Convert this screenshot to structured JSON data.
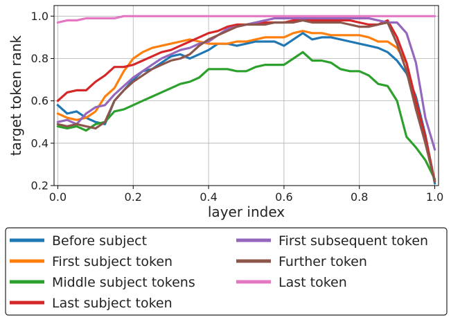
{
  "chart_data": {
    "type": "line",
    "title": "",
    "xlabel": "layer index",
    "ylabel": "target token rank",
    "xlim": [
      -0.01,
      1.01
    ],
    "ylim": [
      0.2,
      1.05
    ],
    "xticks": [
      0.0,
      0.2,
      0.4,
      0.6,
      0.8,
      1.0
    ],
    "xtick_labels": [
      "0.0",
      "0.2",
      "0.4",
      "0.6",
      "0.8",
      "1.0"
    ],
    "yticks": [
      0.2,
      0.4,
      0.6,
      0.8,
      1.0
    ],
    "ytick_labels": [
      "0.2",
      "0.4",
      "0.6",
      "0.8",
      "1.0"
    ],
    "grid": true,
    "legend_position": "below the plot, two columns",
    "x": [
      0.0,
      0.025,
      0.05,
      0.075,
      0.1,
      0.125,
      0.15,
      0.175,
      0.2,
      0.225,
      0.25,
      0.275,
      0.3,
      0.325,
      0.35,
      0.375,
      0.4,
      0.425,
      0.45,
      0.475,
      0.5,
      0.525,
      0.55,
      0.575,
      0.6,
      0.625,
      0.65,
      0.675,
      0.7,
      0.725,
      0.75,
      0.775,
      0.8,
      0.825,
      0.85,
      0.875,
      0.9,
      0.925,
      0.95,
      0.975,
      1.0
    ],
    "series": [
      {
        "name": "Before subject",
        "color": "#1f77b4",
        "values": [
          0.58,
          0.54,
          0.55,
          0.52,
          0.5,
          0.49,
          0.6,
          0.65,
          0.7,
          0.74,
          0.75,
          0.78,
          0.81,
          0.82,
          0.8,
          0.82,
          0.84,
          0.87,
          0.87,
          0.86,
          0.87,
          0.88,
          0.88,
          0.88,
          0.86,
          0.89,
          0.92,
          0.89,
          0.9,
          0.9,
          0.89,
          0.88,
          0.87,
          0.86,
          0.85,
          0.83,
          0.79,
          0.73,
          0.62,
          0.44,
          0.21
        ]
      },
      {
        "name": "First subject token",
        "color": "#ff7f0e",
        "values": [
          0.54,
          0.52,
          0.51,
          0.52,
          0.55,
          0.62,
          0.66,
          0.74,
          0.8,
          0.83,
          0.85,
          0.86,
          0.87,
          0.88,
          0.89,
          0.88,
          0.87,
          0.87,
          0.87,
          0.88,
          0.88,
          0.89,
          0.9,
          0.9,
          0.9,
          0.92,
          0.93,
          0.92,
          0.92,
          0.91,
          0.91,
          0.91,
          0.91,
          0.9,
          0.88,
          0.88,
          0.85,
          0.78,
          0.6,
          0.4,
          0.22
        ]
      },
      {
        "name": "Middle subject tokens",
        "color": "#2ca02c",
        "values": [
          0.48,
          0.47,
          0.48,
          0.46,
          0.49,
          0.5,
          0.55,
          0.56,
          0.58,
          0.6,
          0.62,
          0.64,
          0.66,
          0.68,
          0.69,
          0.71,
          0.75,
          0.75,
          0.75,
          0.74,
          0.74,
          0.76,
          0.77,
          0.77,
          0.77,
          0.8,
          0.83,
          0.79,
          0.79,
          0.78,
          0.75,
          0.74,
          0.74,
          0.72,
          0.68,
          0.67,
          0.6,
          0.43,
          0.38,
          0.32,
          0.23
        ]
      },
      {
        "name": "Last subject token",
        "color": "#d62728",
        "values": [
          0.6,
          0.64,
          0.65,
          0.65,
          0.69,
          0.72,
          0.76,
          0.76,
          0.77,
          0.79,
          0.81,
          0.83,
          0.84,
          0.86,
          0.88,
          0.9,
          0.92,
          0.93,
          0.95,
          0.96,
          0.96,
          0.97,
          0.97,
          0.97,
          0.97,
          0.98,
          0.98,
          0.98,
          0.98,
          0.98,
          0.98,
          0.98,
          0.97,
          0.96,
          0.96,
          0.98,
          0.9,
          0.78,
          0.6,
          0.43,
          0.22
        ]
      },
      {
        "name": "First subsequent token",
        "color": "#9467bd",
        "values": [
          0.5,
          0.51,
          0.49,
          0.54,
          0.57,
          0.58,
          0.63,
          0.67,
          0.71,
          0.74,
          0.77,
          0.8,
          0.82,
          0.84,
          0.85,
          0.87,
          0.88,
          0.91,
          0.94,
          0.95,
          0.96,
          0.97,
          0.98,
          0.99,
          0.99,
          0.99,
          0.99,
          0.99,
          0.99,
          0.99,
          0.99,
          0.99,
          0.99,
          0.99,
          0.98,
          0.97,
          0.97,
          0.92,
          0.78,
          0.52,
          0.37
        ]
      },
      {
        "name": "Further token",
        "color": "#8c564b",
        "values": [
          0.49,
          0.48,
          0.49,
          0.48,
          0.47,
          0.5,
          0.6,
          0.65,
          0.69,
          0.72,
          0.75,
          0.77,
          0.79,
          0.8,
          0.82,
          0.86,
          0.89,
          0.91,
          0.93,
          0.95,
          0.96,
          0.96,
          0.96,
          0.97,
          0.97,
          0.97,
          0.98,
          0.97,
          0.97,
          0.97,
          0.97,
          0.96,
          0.95,
          0.95,
          0.96,
          0.97,
          0.87,
          0.74,
          0.56,
          0.4,
          0.22
        ]
      },
      {
        "name": "Last token",
        "color": "#e377c2",
        "values": [
          0.97,
          0.98,
          0.98,
          0.99,
          0.99,
          0.99,
          0.99,
          1.0,
          1.0,
          1.0,
          1.0,
          1.0,
          1.0,
          1.0,
          1.0,
          1.0,
          1.0,
          1.0,
          1.0,
          1.0,
          1.0,
          1.0,
          1.0,
          1.0,
          1.0,
          1.0,
          1.0,
          1.0,
          1.0,
          1.0,
          1.0,
          1.0,
          1.0,
          1.0,
          1.0,
          1.0,
          1.0,
          1.0,
          1.0,
          1.0,
          1.0
        ]
      }
    ]
  }
}
